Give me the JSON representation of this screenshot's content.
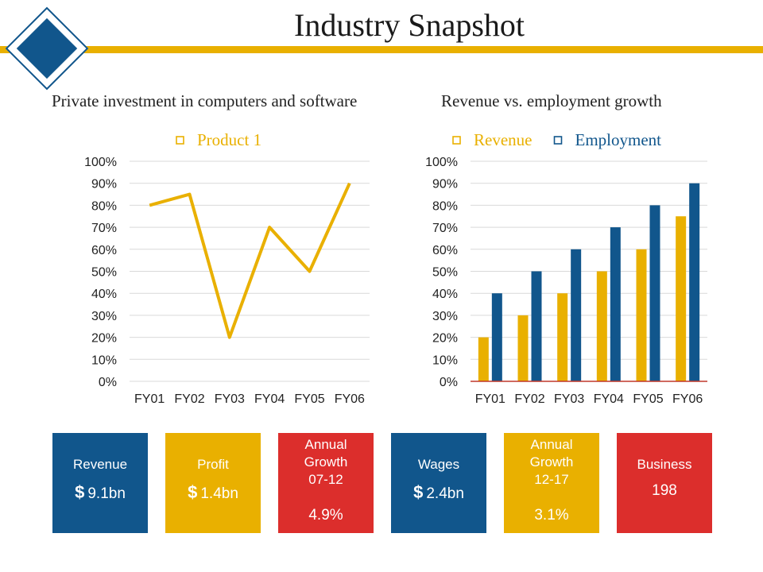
{
  "title": "Industry Snapshot",
  "colors": {
    "gold": "#E9B000",
    "blue": "#11568C",
    "red": "#DC2E2C"
  },
  "chart_data": [
    {
      "type": "line",
      "title": "Private investment in computers and software",
      "categories": [
        "FY01",
        "FY02",
        "FY03",
        "FY04",
        "FY05",
        "FY06"
      ],
      "series": [
        {
          "name": "Product 1",
          "values": [
            80,
            85,
            20,
            70,
            50,
            90
          ],
          "color": "#E9B000"
        }
      ],
      "yticks": [
        "100%",
        "90%",
        "80%",
        "70%",
        "60%",
        "50%",
        "40%",
        "30%",
        "20%",
        "10%",
        "0%"
      ],
      "ylim": [
        0,
        100
      ],
      "legend": "top-center",
      "grid": true
    },
    {
      "type": "bar",
      "title": "Revenue vs. employment growth",
      "categories": [
        "FY01",
        "FY02",
        "FY03",
        "FY04",
        "FY05",
        "FY06"
      ],
      "series": [
        {
          "name": "Revenue",
          "values": [
            20,
            30,
            40,
            50,
            60,
            75
          ],
          "color": "#E9B000"
        },
        {
          "name": "Employment",
          "values": [
            40,
            50,
            60,
            70,
            80,
            90
          ],
          "color": "#11568C"
        }
      ],
      "yticks": [
        "100%",
        "90%",
        "80%",
        "70%",
        "60%",
        "50%",
        "40%",
        "30%",
        "20%",
        "10%",
        "0%"
      ],
      "ylim": [
        0,
        100
      ],
      "legend": "top-center",
      "grid": true
    }
  ],
  "tiles": [
    {
      "label": [
        "Revenue"
      ],
      "currency": "$",
      "value": "9.1bn",
      "color": "#11568C"
    },
    {
      "label": [
        "Profit"
      ],
      "currency": "$",
      "value": "1.4bn",
      "color": "#E9B000"
    },
    {
      "label": [
        "Annual",
        "Growth",
        "07-12"
      ],
      "currency": "",
      "value": "4.9%",
      "color": "#DC2E2C"
    },
    {
      "label": [
        "Wages"
      ],
      "currency": "$",
      "value": "2.4bn",
      "color": "#11568C"
    },
    {
      "label": [
        "Annual",
        "Growth",
        "12-17"
      ],
      "currency": "",
      "value": "3.1%",
      "color": "#E9B000"
    },
    {
      "label": [
        "Business"
      ],
      "currency": "",
      "value": "198",
      "color": "#DC2E2C"
    }
  ]
}
